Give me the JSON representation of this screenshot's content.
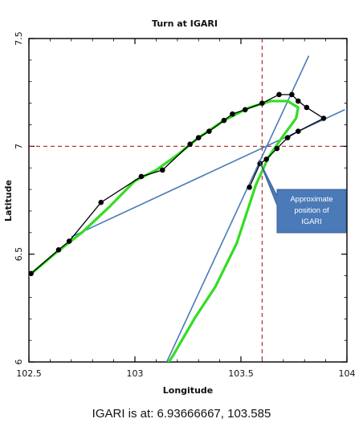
{
  "chart_data": {
    "type": "line",
    "title": "Turn at IGARI",
    "xlabel": "Longitude",
    "ylabel": "Latitude",
    "xlim": [
      102.5,
      104
    ],
    "ylim": [
      6,
      7.5
    ],
    "xticks": [
      102.5,
      103,
      103.5,
      104
    ],
    "xtick_labels": [
      "102.5",
      "103",
      "103.5",
      "104"
    ],
    "yticks": [
      6,
      6.5,
      7,
      7.5
    ],
    "ytick_labels": [
      "6",
      "6.5",
      "7",
      "7.5"
    ],
    "grid": false,
    "legend": "none",
    "series": [
      {
        "kind": "line-with-markers",
        "color": "#000000",
        "points": [
          [
            102.51,
            6.41
          ],
          [
            102.64,
            6.52
          ],
          [
            102.69,
            6.56
          ],
          [
            102.84,
            6.74
          ],
          [
            103.03,
            6.86
          ],
          [
            103.13,
            6.89
          ],
          [
            103.26,
            7.01
          ],
          [
            103.3,
            7.04
          ],
          [
            103.35,
            7.07
          ],
          [
            103.42,
            7.12
          ],
          [
            103.46,
            7.15
          ],
          [
            103.52,
            7.17
          ],
          [
            103.6,
            7.2
          ],
          [
            103.68,
            7.24
          ],
          [
            103.74,
            7.24
          ],
          [
            103.77,
            7.21
          ],
          [
            103.81,
            7.18
          ],
          [
            103.89,
            7.13
          ],
          [
            103.77,
            7.07
          ],
          [
            103.72,
            7.04
          ],
          [
            103.67,
            6.99
          ],
          [
            103.62,
            6.94
          ],
          [
            103.59,
            6.92
          ],
          [
            103.54,
            6.81
          ]
        ]
      },
      {
        "kind": "smoothed-track",
        "color": "#33dd22",
        "points": [
          [
            102.5,
            6.4
          ],
          [
            102.62,
            6.5
          ],
          [
            102.75,
            6.6
          ],
          [
            102.88,
            6.72
          ],
          [
            103.0,
            6.84
          ],
          [
            103.1,
            6.89
          ],
          [
            103.2,
            6.96
          ],
          [
            103.3,
            7.04
          ],
          [
            103.42,
            7.12
          ],
          [
            103.54,
            7.18
          ],
          [
            103.64,
            7.21
          ],
          [
            103.72,
            7.21
          ],
          [
            103.77,
            7.18
          ],
          [
            103.76,
            7.13
          ],
          [
            103.7,
            7.05
          ],
          [
            103.63,
            6.95
          ],
          [
            103.57,
            6.82
          ],
          [
            103.48,
            6.55
          ],
          [
            103.38,
            6.35
          ],
          [
            103.28,
            6.2
          ],
          [
            103.18,
            6.03
          ],
          [
            103.16,
            6.0
          ]
        ]
      }
    ],
    "reference_lines": {
      "horizontal": [
        7.0
      ],
      "vertical": [
        103.6
      ],
      "color": "#aa2222"
    },
    "tangent_lines": [
      {
        "from": [
          102.7,
          6.58
        ],
        "to": [
          103.99,
          7.17
        ],
        "color": "#4a7ab8"
      },
      {
        "from": [
          103.15,
          6.0
        ],
        "to": [
          103.82,
          7.42
        ],
        "color": "#4a7ab8"
      }
    ],
    "annotations": [
      {
        "text_lines": [
          "Approximate",
          "position of",
          "IGARI"
        ],
        "target": [
          103.585,
          6.937
        ],
        "color": "#4a7ab8"
      }
    ]
  },
  "caption": "IGARI is at:  6.93666667, 103.585"
}
